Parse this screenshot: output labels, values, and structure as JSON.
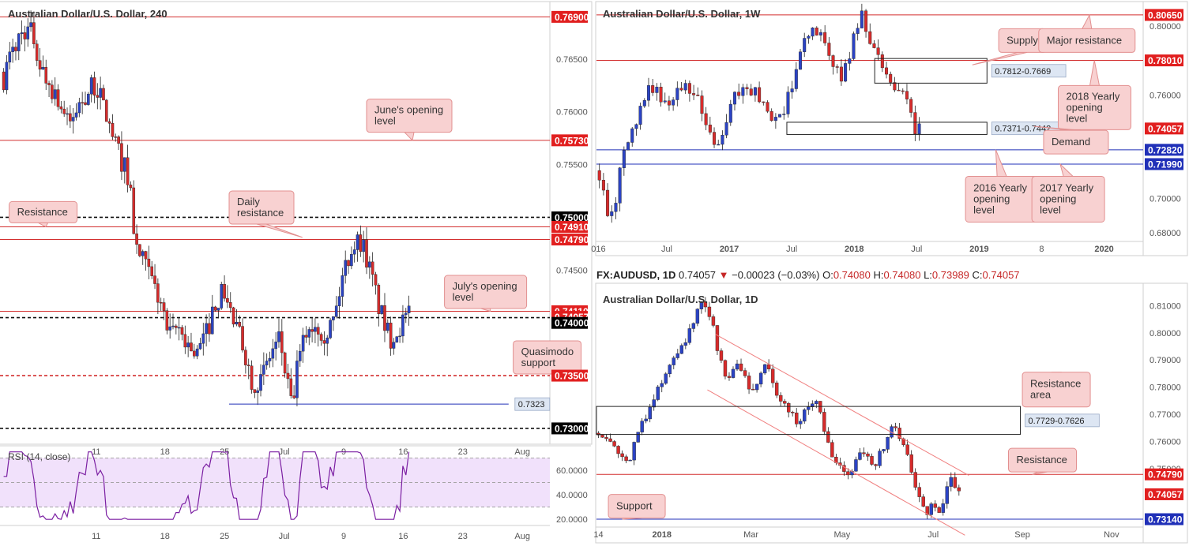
{
  "colors": {
    "bull": "#2b43c4",
    "bear": "#d62b2b",
    "resistance": "#d32f2f",
    "support": "#2030b8",
    "rsi": "#7b1fa2",
    "rsi_band": "#f1e1fb",
    "callout_fill": "#f8d1d1",
    "callout_stroke": "#e29090",
    "box_label_fill": "#dde6f3"
  },
  "chart_data": [
    {
      "id": "h4",
      "type": "candlestick",
      "title": "Australian Dollar/U.S. Dollar, 240",
      "ylim": [
        0.7285,
        0.77
      ],
      "y_ticks": [
        "0.76500",
        "0.76000",
        "0.75500",
        "0.74500"
      ],
      "y_tick_values": [
        0.765,
        0.76,
        0.755,
        0.745
      ],
      "x_ticks": [
        "11",
        "18",
        "25",
        "Jul",
        "9",
        "16",
        "23",
        "Aug"
      ],
      "x_tick_values": [
        10.5,
        18,
        24.5,
        31,
        37.5,
        44,
        50.5,
        57
      ],
      "xlim": [
        0,
        60
      ],
      "price_tags": [
        {
          "label": "0.76900",
          "value": 0.769,
          "style": "red"
        },
        {
          "label": "0.75730",
          "value": 0.7573,
          "style": "red"
        },
        {
          "label": "0.75000",
          "value": 0.75,
          "style": "black"
        },
        {
          "label": "0.74910",
          "value": 0.7491,
          "style": "red"
        },
        {
          "label": "0.74790",
          "value": 0.7479,
          "style": "red"
        },
        {
          "label": "0.74110",
          "value": 0.7411,
          "style": "red"
        },
        {
          "label": "0.74057",
          "value": 0.74057,
          "style": "red"
        },
        {
          "label": "0.74000",
          "value": 0.74,
          "style": "black"
        },
        {
          "label": "0.73500",
          "value": 0.735,
          "style": "red"
        },
        {
          "label": "0.73000",
          "value": 0.73,
          "style": "black"
        }
      ],
      "levels": [
        {
          "value": 0.769,
          "style": "red"
        },
        {
          "value": 0.7573,
          "style": "red"
        },
        {
          "value": 0.75,
          "style": "black-dash"
        },
        {
          "value": 0.7491,
          "style": "red"
        },
        {
          "value": 0.7479,
          "style": "red"
        },
        {
          "value": 0.7411,
          "style": "red"
        },
        {
          "value": 0.7405,
          "style": "black-dash"
        },
        {
          "value": 0.735,
          "style": "red-dash"
        },
        {
          "value": 0.73,
          "style": "black-dash"
        }
      ],
      "segments": [
        {
          "x1": 25,
          "x2": 55.5,
          "value": 0.7323,
          "label": "0.7323"
        }
      ],
      "callouts": [
        {
          "text": [
            "June's opening",
            "level"
          ],
          "x": 40,
          "value": 0.7612,
          "w": 108,
          "h": 42,
          "pointer_x": 45,
          "pointer_value": 0.7573
        },
        {
          "text": [
            "Daily",
            "resistance"
          ],
          "x": 25,
          "value": 0.7525,
          "w": 82,
          "h": 42,
          "pointer_x": 33,
          "pointer_value": 0.7481
        },
        {
          "text": [
            "Resistance"
          ],
          "x": 1,
          "value": 0.7515,
          "w": 86,
          "h": 27,
          "pointer_x": 5,
          "pointer_value": 0.7491
        },
        {
          "text": [
            "July's opening",
            "level"
          ],
          "x": 48.5,
          "value": 0.7445,
          "w": 104,
          "h": 42,
          "pointer_x": 53.5,
          "pointer_value": 0.7411
        },
        {
          "text": [
            "Quasimodo",
            "support"
          ],
          "x": 56,
          "value": 0.7383,
          "w": 86,
          "h": 42,
          "pointer_x": 59.5,
          "pointer_value": 0.7352
        }
      ],
      "rsi": {
        "label": "RSI (14, close)",
        "ylim": [
          15,
          78
        ],
        "band": [
          30,
          70
        ],
        "ticks": [
          "60.0000",
          "40.0000",
          "20.0000"
        ],
        "tick_values": [
          60,
          40,
          20
        ]
      }
    },
    {
      "id": "weekly",
      "type": "candlestick",
      "title": "Australian Dollar/U.S. Dollar, 1W",
      "ylim": [
        0.675,
        0.8115
      ],
      "y_ticks": [
        "0.80000",
        "0.76000",
        "0.70000",
        "0.68000"
      ],
      "y_tick_values": [
        0.8,
        0.76,
        0.7,
        0.68
      ],
      "x_ticks": [
        "016",
        "Jul",
        "2017",
        "Jul",
        "2018",
        "Jul",
        "2019",
        "8",
        "2020"
      ],
      "x_tick_values": [
        0.2,
        7.2,
        13.6,
        20.0,
        26.4,
        32.8,
        39.2,
        45.6,
        52.0
      ],
      "xlim": [
        0,
        56
      ],
      "price_tags": [
        {
          "label": "0.80650",
          "value": 0.8065,
          "style": "red"
        },
        {
          "label": "0.78010",
          "value": 0.7801,
          "style": "red"
        },
        {
          "label": "0.74057",
          "value": 0.74057,
          "style": "red"
        },
        {
          "label": "0.72820",
          "value": 0.7282,
          "style": "blue"
        },
        {
          "label": "0.71990",
          "value": 0.7199,
          "style": "blue"
        }
      ],
      "levels": [
        {
          "value": 0.8065,
          "style": "red"
        },
        {
          "value": 0.7801,
          "style": "red"
        },
        {
          "value": 0.7282,
          "style": "blue"
        },
        {
          "value": 0.7199,
          "style": "blue"
        }
      ],
      "zones": [
        {
          "x1": 28.5,
          "x2": 40,
          "top": 0.7812,
          "bottom": 0.7669,
          "label": "0.7812-0.7669"
        },
        {
          "x1": 19.5,
          "x2": 40,
          "top": 0.7442,
          "bottom": 0.7371,
          "label": "0.7371-0.7442"
        }
      ],
      "callouts": [
        {
          "text": [
            "Supply"
          ],
          "x": 41.2,
          "value": 0.7985,
          "w": 60,
          "h": 30,
          "pointer_x": 38.5,
          "pointer_value": 0.7775
        },
        {
          "text": [
            "Major resistance"
          ],
          "x": 45.3,
          "value": 0.7985,
          "w": 122,
          "h": 30,
          "pointer_x": 50.5,
          "pointer_value": 0.8065
        },
        {
          "text": [
            "2018 Yearly",
            "opening",
            "level"
          ],
          "x": 47.3,
          "value": 0.7655,
          "w": 92,
          "h": 56,
          "pointer_x": 51,
          "pointer_value": 0.7801
        },
        {
          "text": [
            "Demand"
          ],
          "x": 45.8,
          "value": 0.7395,
          "w": 82,
          "h": 30,
          "pointer_x": 44.8,
          "pointer_value": 0.7418
        },
        {
          "text": [
            "2016 Yearly",
            "opening",
            "level"
          ],
          "x": 37.8,
          "value": 0.7128,
          "w": 92,
          "h": 58,
          "pointer_x": 40.9,
          "pointer_value": 0.7282
        },
        {
          "text": [
            "2017 Yearly",
            "opening",
            "level"
          ],
          "x": 44.6,
          "value": 0.7128,
          "w": 92,
          "h": 58,
          "pointer_x": 47.5,
          "pointer_value": 0.7199
        }
      ]
    },
    {
      "id": "daily",
      "type": "candlestick",
      "title": "Australian Dollar/U.S. Dollar, 1D",
      "ylim": [
        0.7285,
        0.8165
      ],
      "y_ticks": [
        "0.81000",
        "0.80000",
        "0.79000",
        "0.78000",
        "0.77000",
        "0.76000",
        "0.75000"
      ],
      "y_tick_values": [
        0.81,
        0.8,
        0.79,
        0.78,
        0.77,
        0.76,
        0.75
      ],
      "x_ticks": [
        "14",
        "2018",
        "Mar",
        "May",
        "Jul",
        "Sep",
        "Nov"
      ],
      "x_tick_values": [
        0.5,
        16.5,
        39,
        62,
        85,
        107.5,
        130
      ],
      "xlim": [
        0,
        138
      ],
      "price_tags": [
        {
          "label": "0.74790",
          "value": 0.7479,
          "style": "red"
        },
        {
          "label": "0.74057",
          "value": 0.74057,
          "style": "red"
        },
        {
          "label": "0.73140",
          "value": 0.7314,
          "style": "blue"
        }
      ],
      "levels": [
        {
          "value": 0.7479,
          "style": "red"
        },
        {
          "value": 0.7314,
          "style": "blue"
        }
      ],
      "zones": [
        {
          "x1": 0,
          "x2": 107,
          "top": 0.7729,
          "bottom": 0.7626,
          "label": "0.7729-0.7626"
        }
      ],
      "channel": {
        "upper": [
          [
            30,
            0.7995
          ],
          [
            94,
            0.7475
          ]
        ],
        "lower": [
          [
            28,
            0.779
          ],
          [
            93,
            0.7255
          ]
        ]
      },
      "callouts": [
        {
          "text": [
            "Resistance",
            "area"
          ],
          "x": 107.5,
          "value": 0.7855,
          "w": 86,
          "h": 44,
          "pointer_x": 112,
          "pointer_value": 0.7729
        },
        {
          "text": [
            "Resistance"
          ],
          "x": 104,
          "value": 0.7575,
          "w": 86,
          "h": 30,
          "pointer_x": 110,
          "pointer_value": 0.7479
        },
        {
          "text": [
            "Support"
          ],
          "x": 3,
          "value": 0.7405,
          "w": 72,
          "h": 30,
          "pointer_x": 6.5,
          "pointer_value": 0.7314
        }
      ],
      "info_bar": {
        "symbol": "FX:AUDUSD, 1D",
        "price": "0.74057",
        "change": "−0.00023 (−0.03%)",
        "o_label": "O:",
        "o_val": "0.74080",
        "h_label": "H:",
        "h_val": "0.74080",
        "l_label": "L:",
        "l_val": "0.73989",
        "c_label": "C:",
        "c_val": "0.74057"
      }
    }
  ]
}
